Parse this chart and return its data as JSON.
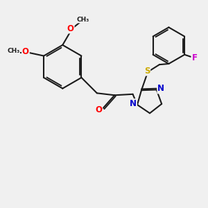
{
  "bg_color": "#f0f0f0",
  "bond_color": "#1a1a1a",
  "bond_width": 1.5,
  "dbo": 0.07,
  "atom_colors": {
    "O": "#ff0000",
    "N": "#0000cc",
    "S": "#ccaa00",
    "F": "#cc00cc",
    "C": "#1a1a1a"
  },
  "fs": 8.5
}
